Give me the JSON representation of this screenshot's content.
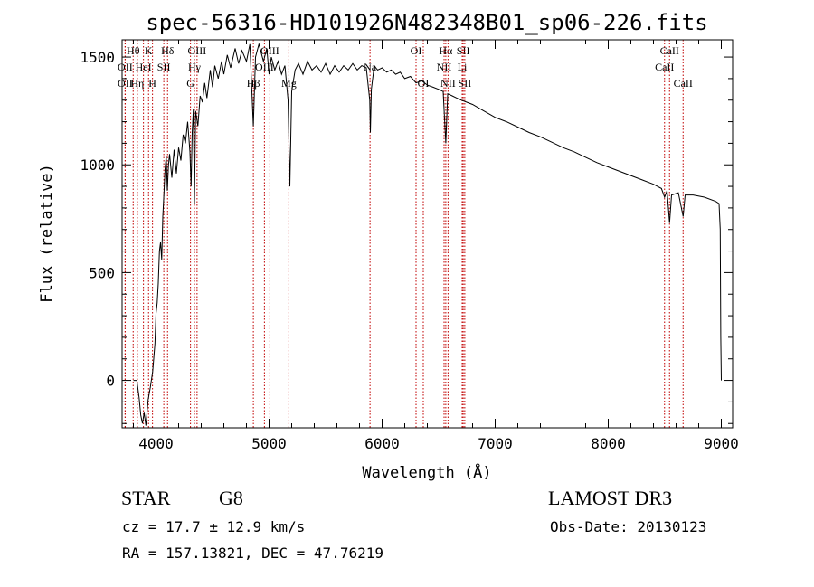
{
  "chart_data": {
    "type": "line",
    "title": "spec-56316-HD101926N482348B01_sp06-226.fits",
    "xlabel": "Wavelength (Å)",
    "ylabel": "Flux (relative)",
    "xlim": [
      3700,
      9100
    ],
    "ylim": [
      -220,
      1580
    ],
    "xticks": [
      4000,
      5000,
      6000,
      7000,
      8000,
      9000
    ],
    "yticks": [
      0,
      500,
      1000,
      1500
    ],
    "grid": false,
    "series": [
      {
        "name": "flux",
        "color": "#000000",
        "points": [
          [
            3800,
            0
          ],
          [
            3830,
            0
          ],
          [
            3850,
            -80
          ],
          [
            3865,
            -160
          ],
          [
            3880,
            -200
          ],
          [
            3895,
            -150
          ],
          [
            3910,
            -210
          ],
          [
            3930,
            -90
          ],
          [
            3950,
            -30
          ],
          [
            3970,
            40
          ],
          [
            3990,
            170
          ],
          [
            4000,
            310
          ],
          [
            4010,
            360
          ],
          [
            4020,
            450
          ],
          [
            4030,
            600
          ],
          [
            4040,
            640
          ],
          [
            4050,
            560
          ],
          [
            4060,
            760
          ],
          [
            4070,
            870
          ],
          [
            4080,
            980
          ],
          [
            4090,
            1040
          ],
          [
            4100,
            880
          ],
          [
            4110,
            1000
          ],
          [
            4120,
            1050
          ],
          [
            4140,
            940
          ],
          [
            4160,
            1070
          ],
          [
            4180,
            960
          ],
          [
            4200,
            1080
          ],
          [
            4220,
            1020
          ],
          [
            4240,
            1140
          ],
          [
            4260,
            1100
          ],
          [
            4280,
            1200
          ],
          [
            4300,
            1060
          ],
          [
            4310,
            900
          ],
          [
            4320,
            1150
          ],
          [
            4330,
            1260
          ],
          [
            4340,
            820
          ],
          [
            4350,
            1250
          ],
          [
            4370,
            1180
          ],
          [
            4390,
            1320
          ],
          [
            4410,
            1290
          ],
          [
            4430,
            1380
          ],
          [
            4450,
            1310
          ],
          [
            4480,
            1440
          ],
          [
            4500,
            1360
          ],
          [
            4520,
            1460
          ],
          [
            4550,
            1400
          ],
          [
            4580,
            1480
          ],
          [
            4600,
            1420
          ],
          [
            4630,
            1510
          ],
          [
            4660,
            1450
          ],
          [
            4700,
            1540
          ],
          [
            4730,
            1470
          ],
          [
            4760,
            1530
          ],
          [
            4800,
            1480
          ],
          [
            4830,
            1560
          ],
          [
            4861,
            1180
          ],
          [
            4880,
            1500
          ],
          [
            4910,
            1560
          ],
          [
            4950,
            1480
          ],
          [
            4980,
            1540
          ],
          [
            5000,
            1420
          ],
          [
            5020,
            1500
          ],
          [
            5050,
            1440
          ],
          [
            5080,
            1480
          ],
          [
            5110,
            1420
          ],
          [
            5140,
            1460
          ],
          [
            5168,
            1300
          ],
          [
            5184,
            900
          ],
          [
            5200,
            1340
          ],
          [
            5230,
            1440
          ],
          [
            5260,
            1470
          ],
          [
            5300,
            1420
          ],
          [
            5340,
            1480
          ],
          [
            5380,
            1440
          ],
          [
            5420,
            1460
          ],
          [
            5460,
            1430
          ],
          [
            5500,
            1470
          ],
          [
            5540,
            1420
          ],
          [
            5580,
            1460
          ],
          [
            5620,
            1430
          ],
          [
            5660,
            1460
          ],
          [
            5700,
            1440
          ],
          [
            5740,
            1470
          ],
          [
            5780,
            1440
          ],
          [
            5820,
            1460
          ],
          [
            5860,
            1450
          ],
          [
            5890,
            1300
          ],
          [
            5896,
            1150
          ],
          [
            5905,
            1350
          ],
          [
            5930,
            1460
          ],
          [
            5960,
            1440
          ],
          [
            6000,
            1450
          ],
          [
            6040,
            1430
          ],
          [
            6080,
            1440
          ],
          [
            6120,
            1420
          ],
          [
            6160,
            1430
          ],
          [
            6200,
            1400
          ],
          [
            6250,
            1410
          ],
          [
            6300,
            1380
          ],
          [
            6350,
            1390
          ],
          [
            6400,
            1370
          ],
          [
            6450,
            1360
          ],
          [
            6500,
            1350
          ],
          [
            6540,
            1340
          ],
          [
            6563,
            1100
          ],
          [
            6580,
            1330
          ],
          [
            6620,
            1320
          ],
          [
            6660,
            1310
          ],
          [
            6700,
            1300
          ],
          [
            6750,
            1290
          ],
          [
            6800,
            1280
          ],
          [
            6900,
            1250
          ],
          [
            7000,
            1220
          ],
          [
            7100,
            1200
          ],
          [
            7200,
            1175
          ],
          [
            7300,
            1150
          ],
          [
            7400,
            1130
          ],
          [
            7500,
            1105
          ],
          [
            7600,
            1080
          ],
          [
            7700,
            1060
          ],
          [
            7800,
            1035
          ],
          [
            7900,
            1010
          ],
          [
            8000,
            990
          ],
          [
            8100,
            970
          ],
          [
            8200,
            950
          ],
          [
            8300,
            930
          ],
          [
            8400,
            910
          ],
          [
            8470,
            890
          ],
          [
            8498,
            850
          ],
          [
            8520,
            880
          ],
          [
            8542,
            730
          ],
          [
            8560,
            860
          ],
          [
            8620,
            870
          ],
          [
            8662,
            760
          ],
          [
            8680,
            860
          ],
          [
            8750,
            860
          ],
          [
            8850,
            850
          ],
          [
            8950,
            830
          ],
          [
            8980,
            820
          ],
          [
            8990,
            700
          ],
          [
            8995,
            200
          ],
          [
            9000,
            0
          ]
        ]
      }
    ],
    "lines": [
      {
        "label": "Hθ",
        "x": 3798,
        "row": 0
      },
      {
        "label": "OII",
        "x": 3727,
        "row": 1
      },
      {
        "label": "OII",
        "x": 3727,
        "row": 2
      },
      {
        "label": "Hη",
        "x": 3835,
        "row": 2
      },
      {
        "label": "K",
        "x": 3934,
        "row": 0
      },
      {
        "label": "HeI",
        "x": 3889,
        "row": 1
      },
      {
        "label": "SII",
        "x": 4069,
        "row": 1
      },
      {
        "label": "H",
        "x": 3969,
        "row": 2
      },
      {
        "label": "Hδ",
        "x": 4102,
        "row": 0
      },
      {
        "label": "OIII",
        "x": 4363,
        "row": 0
      },
      {
        "label": "Hγ",
        "x": 4340,
        "row": 1
      },
      {
        "label": "G",
        "x": 4305,
        "row": 2
      },
      {
        "label": "OIII",
        "x": 5007,
        "row": 0
      },
      {
        "label": "OIII",
        "x": 4959,
        "row": 1
      },
      {
        "label": "Hβ",
        "x": 4861,
        "row": 2
      },
      {
        "label": "Mg",
        "x": 5175,
        "row": 2
      },
      {
        "label": "Na",
        "x": 5893,
        "row": 1
      },
      {
        "label": "OI",
        "x": 6300,
        "row": 0
      },
      {
        "label": "OI",
        "x": 6364,
        "row": 2
      },
      {
        "label": "Hα",
        "x": 6563,
        "row": 0
      },
      {
        "label": "SII",
        "x": 6717,
        "row": 0
      },
      {
        "label": "NII",
        "x": 6548,
        "row": 1
      },
      {
        "label": "Li",
        "x": 6708,
        "row": 1
      },
      {
        "label": "NII",
        "x": 6583,
        "row": 2
      },
      {
        "label": "SII",
        "x": 6731,
        "row": 2
      },
      {
        "label": "CaII",
        "x": 8542,
        "row": 0
      },
      {
        "label": "CaII",
        "x": 8498,
        "row": 1
      },
      {
        "label": "CaII",
        "x": 8662,
        "row": 2
      }
    ]
  },
  "info": {
    "object_class": "STAR",
    "subclass": "G8",
    "survey": "LAMOST DR3",
    "cz": "cz = 17.7 ± 12.9 km/s",
    "obs_date": "Obs-Date: 20130123",
    "coords": "RA = 157.13821, DEC =  47.76219"
  }
}
